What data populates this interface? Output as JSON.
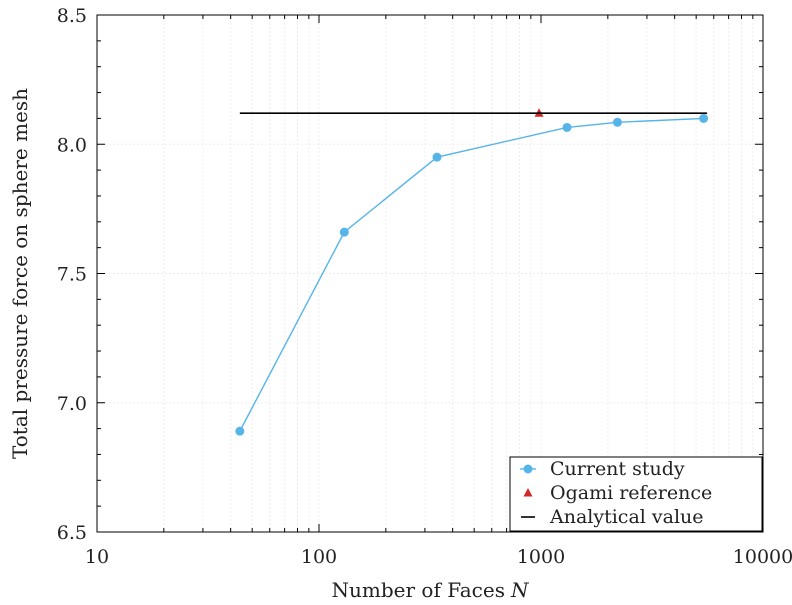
{
  "chart_data": {
    "type": "line",
    "xscale": "log",
    "xlim": [
      10,
      10000
    ],
    "ylim": [
      6.5,
      8.5
    ],
    "xticks": [
      10,
      100,
      1000,
      10000
    ],
    "xtick_labels": [
      "10",
      "100",
      "1000",
      "10000"
    ],
    "yticks": [
      6.5,
      7.0,
      7.5,
      8.0,
      8.5
    ],
    "ytick_labels": [
      "6.5",
      "7.0",
      "7.5",
      "8.0",
      "8.5"
    ],
    "xlabel": "Number of Faces",
    "xlabel_var": "N",
    "ylabel": "Total pressure force on sphere mesh",
    "grid": true,
    "legend_position": "bottom-right",
    "series": [
      {
        "name": "Current study",
        "kind": "line-marker",
        "color": "#56b4e9",
        "x": [
          44,
          130,
          340,
          1310,
          2210,
          5400
        ],
        "y": [
          6.89,
          7.66,
          7.95,
          8.065,
          8.085,
          8.1
        ]
      },
      {
        "name": "Ogami reference",
        "kind": "marker",
        "color": "#d62728",
        "x": [
          980
        ],
        "y": [
          8.12
        ]
      },
      {
        "name": "Analytical value",
        "kind": "line",
        "color": "#000000",
        "x": [
          44,
          5600
        ],
        "y": [
          8.12,
          8.12
        ]
      }
    ]
  }
}
